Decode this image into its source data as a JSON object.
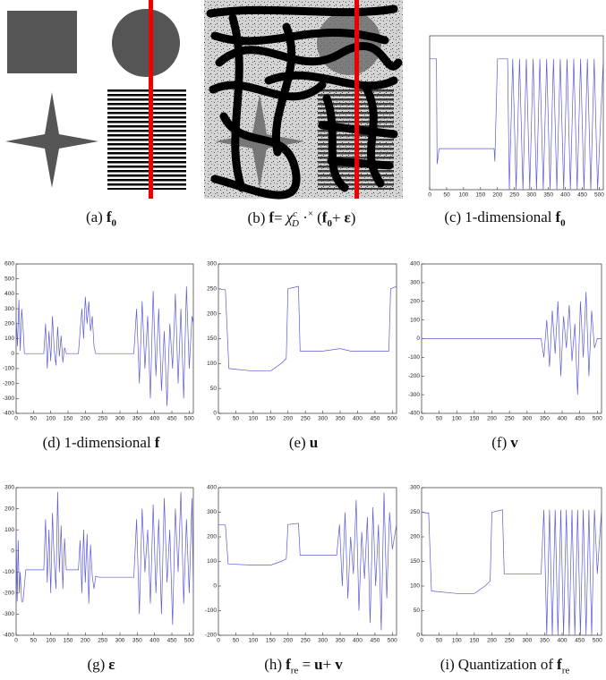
{
  "figures": [
    {
      "caption": [
        "(a)",
        "f",
        "0"
      ]
    },
    {
      "caption": [
        "(b)",
        "f",
        "=",
        "χ",
        "c",
        "D",
        "·",
        "×",
        "(",
        "f",
        "0",
        "+",
        "ε",
        ")"
      ]
    },
    {
      "caption": [
        "(c)",
        "1-dimensional",
        "f",
        "0"
      ],
      "chart_data": {
        "type": "line",
        "color": "#5b5bd6",
        "xlim": [
          0,
          512
        ],
        "ylim": [
          0,
          300
        ],
        "xticks": [
          0,
          50,
          100,
          150,
          200,
          250,
          300,
          350,
          400,
          450,
          500
        ],
        "x": [
          0,
          20,
          22,
          28,
          190,
          192,
          200,
          230,
          235,
          245,
          255,
          265,
          275,
          285,
          295,
          305,
          315,
          325,
          335,
          345,
          355,
          365,
          375,
          385,
          395,
          405,
          415,
          425,
          435,
          445,
          455,
          465,
          475,
          485,
          495,
          512
        ],
        "values": [
          255,
          255,
          50,
          80,
          80,
          55,
          255,
          255,
          0,
          255,
          0,
          255,
          0,
          255,
          0,
          255,
          0,
          255,
          0,
          255,
          0,
          255,
          0,
          255,
          0,
          255,
          0,
          255,
          0,
          255,
          0,
          255,
          0,
          255,
          0,
          255
        ]
      }
    },
    {
      "caption": [
        "(d)",
        "1-dimensional",
        "f"
      ],
      "chart_data": {
        "type": "line",
        "color": "#5b5bd6",
        "xlim": [
          0,
          512
        ],
        "ylim": [
          -400,
          600
        ],
        "xticks": [
          0,
          50,
          100,
          150,
          200,
          250,
          300,
          350,
          400,
          450,
          500
        ],
        "yticks": [
          -400,
          -300,
          -200,
          -100,
          0,
          100,
          200,
          300,
          400,
          500,
          600
        ],
        "x": [
          0,
          4,
          8,
          12,
          16,
          20,
          24,
          80,
          85,
          90,
          95,
          100,
          105,
          110,
          115,
          120,
          125,
          130,
          135,
          140,
          145,
          180,
          185,
          190,
          195,
          200,
          205,
          210,
          215,
          220,
          225,
          230,
          340,
          348,
          356,
          364,
          372,
          380,
          388,
          396,
          404,
          412,
          420,
          428,
          436,
          444,
          452,
          460,
          468,
          476,
          484,
          492,
          500,
          508,
          512
        ],
        "values": [
          250,
          50,
          360,
          20,
          300,
          180,
          0,
          0,
          200,
          -100,
          150,
          -50,
          250,
          30,
          -80,
          180,
          -20,
          120,
          -60,
          40,
          0,
          0,
          150,
          300,
          100,
          380,
          200,
          350,
          150,
          250,
          50,
          0,
          0,
          300,
          -200,
          350,
          -100,
          250,
          -300,
          420,
          -150,
          300,
          -250,
          150,
          -350,
          200,
          -100,
          400,
          -200,
          300,
          -300,
          450,
          -100,
          250,
          200
        ]
      }
    },
    {
      "caption": [
        "(e)",
        "u"
      ],
      "chart_data": {
        "type": "line",
        "color": "#5b5bd6",
        "xlim": [
          0,
          512
        ],
        "ylim": [
          0,
          300
        ],
        "xticks": [
          0,
          50,
          100,
          150,
          200,
          250,
          300,
          350,
          400,
          450,
          500
        ],
        "yticks": [
          0,
          50,
          100,
          150,
          200,
          250,
          300
        ],
        "x": [
          0,
          20,
          30,
          100,
          150,
          180,
          195,
          200,
          230,
          235,
          300,
          350,
          380,
          470,
          490,
          495,
          512
        ],
        "values": [
          250,
          248,
          90,
          85,
          85,
          100,
          110,
          250,
          255,
          125,
          125,
          130,
          125,
          125,
          125,
          250,
          255
        ]
      }
    },
    {
      "caption": [
        "(f)",
        "v"
      ],
      "chart_data": {
        "type": "line",
        "color": "#5b5bd6",
        "xlim": [
          0,
          512
        ],
        "ylim": [
          -400,
          400
        ],
        "xticks": [
          0,
          50,
          100,
          150,
          200,
          250,
          300,
          350,
          400,
          450,
          500
        ],
        "yticks": [
          -400,
          -300,
          -200,
          -100,
          0,
          100,
          200,
          300,
          400
        ],
        "x": [
          0,
          340,
          348,
          356,
          364,
          372,
          380,
          388,
          396,
          404,
          412,
          420,
          428,
          436,
          444,
          452,
          460,
          468,
          476,
          484,
          492,
          500,
          512
        ],
        "values": [
          0,
          0,
          -100,
          100,
          -150,
          150,
          -80,
          200,
          -200,
          120,
          -50,
          180,
          -120,
          80,
          -300,
          200,
          -100,
          250,
          -200,
          150,
          -50,
          0,
          0
        ]
      }
    },
    {
      "caption": [
        "(g)",
        "ε"
      ],
      "chart_data": {
        "type": "line",
        "color": "#5b5bd6",
        "xlim": [
          0,
          512
        ],
        "ylim": [
          -400,
          300
        ],
        "xticks": [
          0,
          50,
          100,
          150,
          200,
          250,
          300,
          350,
          400,
          450,
          500
        ],
        "yticks": [
          -400,
          -300,
          -200,
          -100,
          0,
          100,
          200,
          300
        ],
        "x": [
          0,
          3,
          6,
          9,
          12,
          16,
          20,
          28,
          40,
          80,
          85,
          90,
          95,
          100,
          105,
          110,
          115,
          120,
          125,
          130,
          135,
          140,
          145,
          150,
          180,
          185,
          190,
          195,
          200,
          205,
          210,
          215,
          220,
          225,
          230,
          240,
          340,
          348,
          356,
          364,
          372,
          380,
          388,
          396,
          404,
          412,
          420,
          428,
          436,
          444,
          452,
          460,
          468,
          476,
          484,
          492,
          500,
          508,
          512
        ],
        "values": [
          100,
          -240,
          50,
          -200,
          -100,
          -240,
          -240,
          -90,
          -90,
          -90,
          150,
          -150,
          100,
          -200,
          180,
          -40,
          -180,
          280,
          -100,
          120,
          -180,
          60,
          -90,
          -90,
          -90,
          50,
          -200,
          100,
          -150,
          80,
          -250,
          30,
          -120,
          -180,
          -120,
          -125,
          -125,
          150,
          -300,
          200,
          -100,
          100,
          -250,
          220,
          -200,
          150,
          -300,
          250,
          -150,
          100,
          -350,
          200,
          -100,
          280,
          -250,
          150,
          -200,
          250,
          -200
        ]
      }
    },
    {
      "caption": [
        "(h)",
        "f",
        "re",
        "=",
        "u",
        "+",
        "v"
      ],
      "chart_data": {
        "type": "line",
        "color": "#5b5bd6",
        "xlim": [
          0,
          512
        ],
        "ylim": [
          -200,
          400
        ],
        "xticks": [
          0,
          50,
          100,
          150,
          200,
          250,
          300,
          350,
          400,
          450,
          500
        ],
        "yticks": [
          -200,
          -100,
          0,
          100,
          200,
          300,
          400
        ],
        "x": [
          0,
          20,
          28,
          100,
          150,
          180,
          195,
          200,
          230,
          235,
          340,
          348,
          356,
          364,
          372,
          380,
          388,
          396,
          404,
          412,
          420,
          428,
          436,
          444,
          452,
          460,
          468,
          476,
          484,
          492,
          500,
          512
        ],
        "values": [
          250,
          248,
          90,
          85,
          85,
          100,
          110,
          250,
          255,
          125,
          125,
          250,
          0,
          300,
          -50,
          200,
          50,
          350,
          -100,
          220,
          30,
          280,
          -150,
          320,
          0,
          250,
          -180,
          380,
          -50,
          300,
          150,
          250
        ]
      }
    },
    {
      "caption": [
        "(i)",
        "Quantization of",
        "f",
        "re"
      ],
      "chart_data": {
        "type": "line",
        "color": "#5b5bd6",
        "xlim": [
          0,
          512
        ],
        "ylim": [
          0,
          300
        ],
        "xticks": [
          0,
          50,
          100,
          150,
          200,
          250,
          300,
          350,
          400,
          450,
          500
        ],
        "yticks": [
          0,
          50,
          100,
          150,
          200,
          250,
          300
        ],
        "x": [
          0,
          20,
          28,
          100,
          150,
          180,
          195,
          200,
          230,
          235,
          340,
          348,
          356,
          364,
          372,
          380,
          388,
          396,
          404,
          412,
          420,
          428,
          436,
          444,
          452,
          460,
          468,
          476,
          484,
          492,
          500,
          512
        ],
        "values": [
          250,
          248,
          90,
          85,
          85,
          100,
          110,
          250,
          255,
          125,
          125,
          255,
          0,
          255,
          0,
          255,
          0,
          255,
          0,
          255,
          0,
          255,
          0,
          255,
          0,
          255,
          0,
          255,
          0,
          255,
          125,
          255
        ]
      }
    }
  ]
}
